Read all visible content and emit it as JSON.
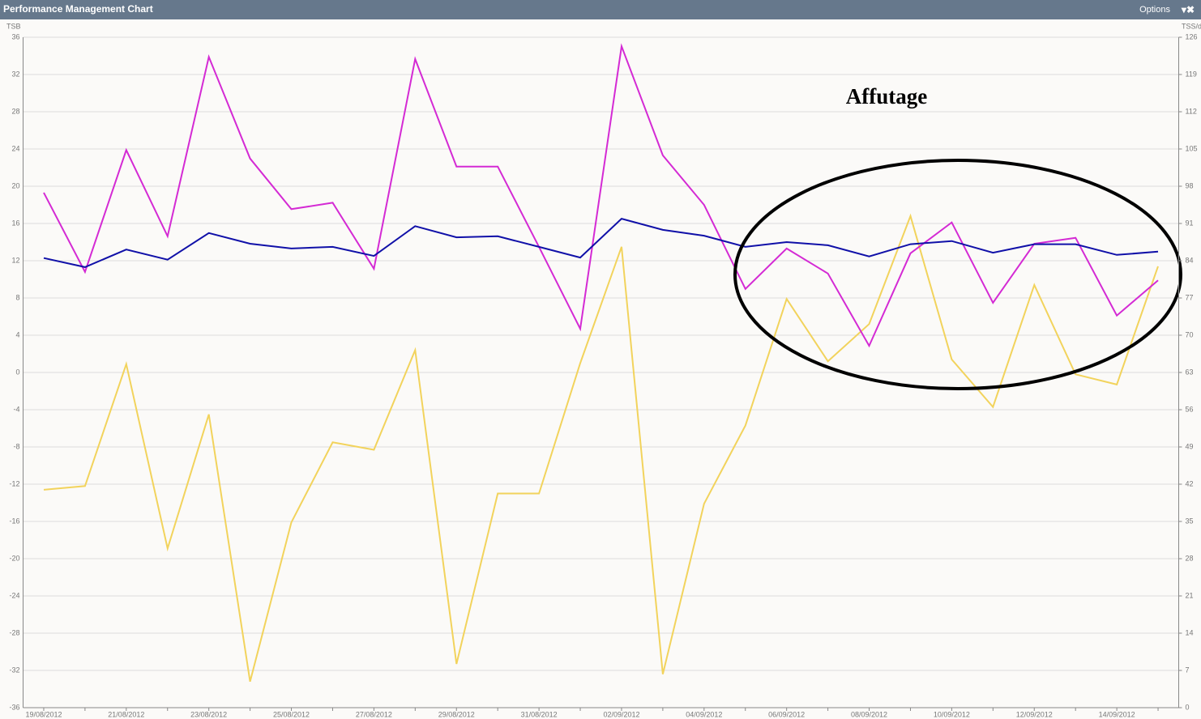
{
  "header": {
    "title": "Performance Management Chart",
    "options": "Options"
  },
  "chart_data": {
    "type": "line",
    "ylabel": "TSB",
    "y2label": "TSS/d",
    "annotation": "Affutage",
    "categories": [
      "19/08/2012",
      null,
      "21/08/2012",
      null,
      "23/08/2012",
      null,
      "25/08/2012",
      null,
      "27/08/2012",
      null,
      "29/08/2012",
      null,
      "31/08/2012",
      null,
      "02/09/2012",
      null,
      "04/09/2012",
      null,
      "06/09/2012",
      null,
      "08/09/2012",
      null,
      "10/09/2012",
      null,
      "12/09/2012",
      null,
      "14/09/2012",
      null
    ],
    "ylim": [
      -36,
      36
    ],
    "yticks": [
      -36,
      -32,
      -28,
      -24,
      -20,
      -16,
      -12,
      -8,
      -4,
      0,
      4,
      8,
      12,
      16,
      20,
      24,
      28,
      32,
      36
    ],
    "y2lim": [
      0,
      126
    ],
    "y2ticks": [
      0,
      7,
      14,
      21,
      28,
      35,
      42,
      49,
      56,
      63,
      70,
      77,
      84,
      91,
      98,
      105,
      112,
      119,
      126
    ],
    "grid": true,
    "series": [
      {
        "color": "#f2d35c",
        "values": [
          -12.6,
          -12.2,
          0.9,
          -18.9,
          -4.5,
          -33.2,
          -16.1,
          -7.5,
          -8.3,
          2.4,
          -31.3,
          -13.0,
          -13.0,
          1.0,
          13.5,
          -32.4,
          -14.1,
          -5.7,
          7.9,
          1.2,
          5.2,
          16.8,
          1.4,
          -3.7,
          9.4,
          -0.2,
          -1.3,
          11.4
        ]
      },
      {
        "color": "#d42ad4",
        "axis": "y2",
        "values": [
          96.8,
          81.9,
          104.8,
          88.6,
          122.3,
          103.2,
          93.7,
          94.9,
          82.5,
          121.9,
          101.7,
          101.7,
          86.6,
          71.2,
          124.3,
          103.8,
          94.5,
          78.7,
          86.3,
          81.6,
          68.0,
          85.4,
          91.2,
          76.1,
          87.2,
          88.3,
          73.7,
          80.3
        ]
      },
      {
        "color": "#1010a8",
        "axis": "y2",
        "values": [
          84.5,
          82.8,
          86.1,
          84.2,
          89.2,
          87.2,
          86.3,
          86.6,
          84.9,
          90.5,
          88.4,
          88.6,
          86.6,
          84.6,
          91.9,
          89.8,
          88.7,
          86.6,
          87.5,
          86.9,
          84.8,
          87.1,
          87.7,
          85.5,
          87.1,
          87.1,
          85.1,
          85.7
        ]
      }
    ]
  }
}
